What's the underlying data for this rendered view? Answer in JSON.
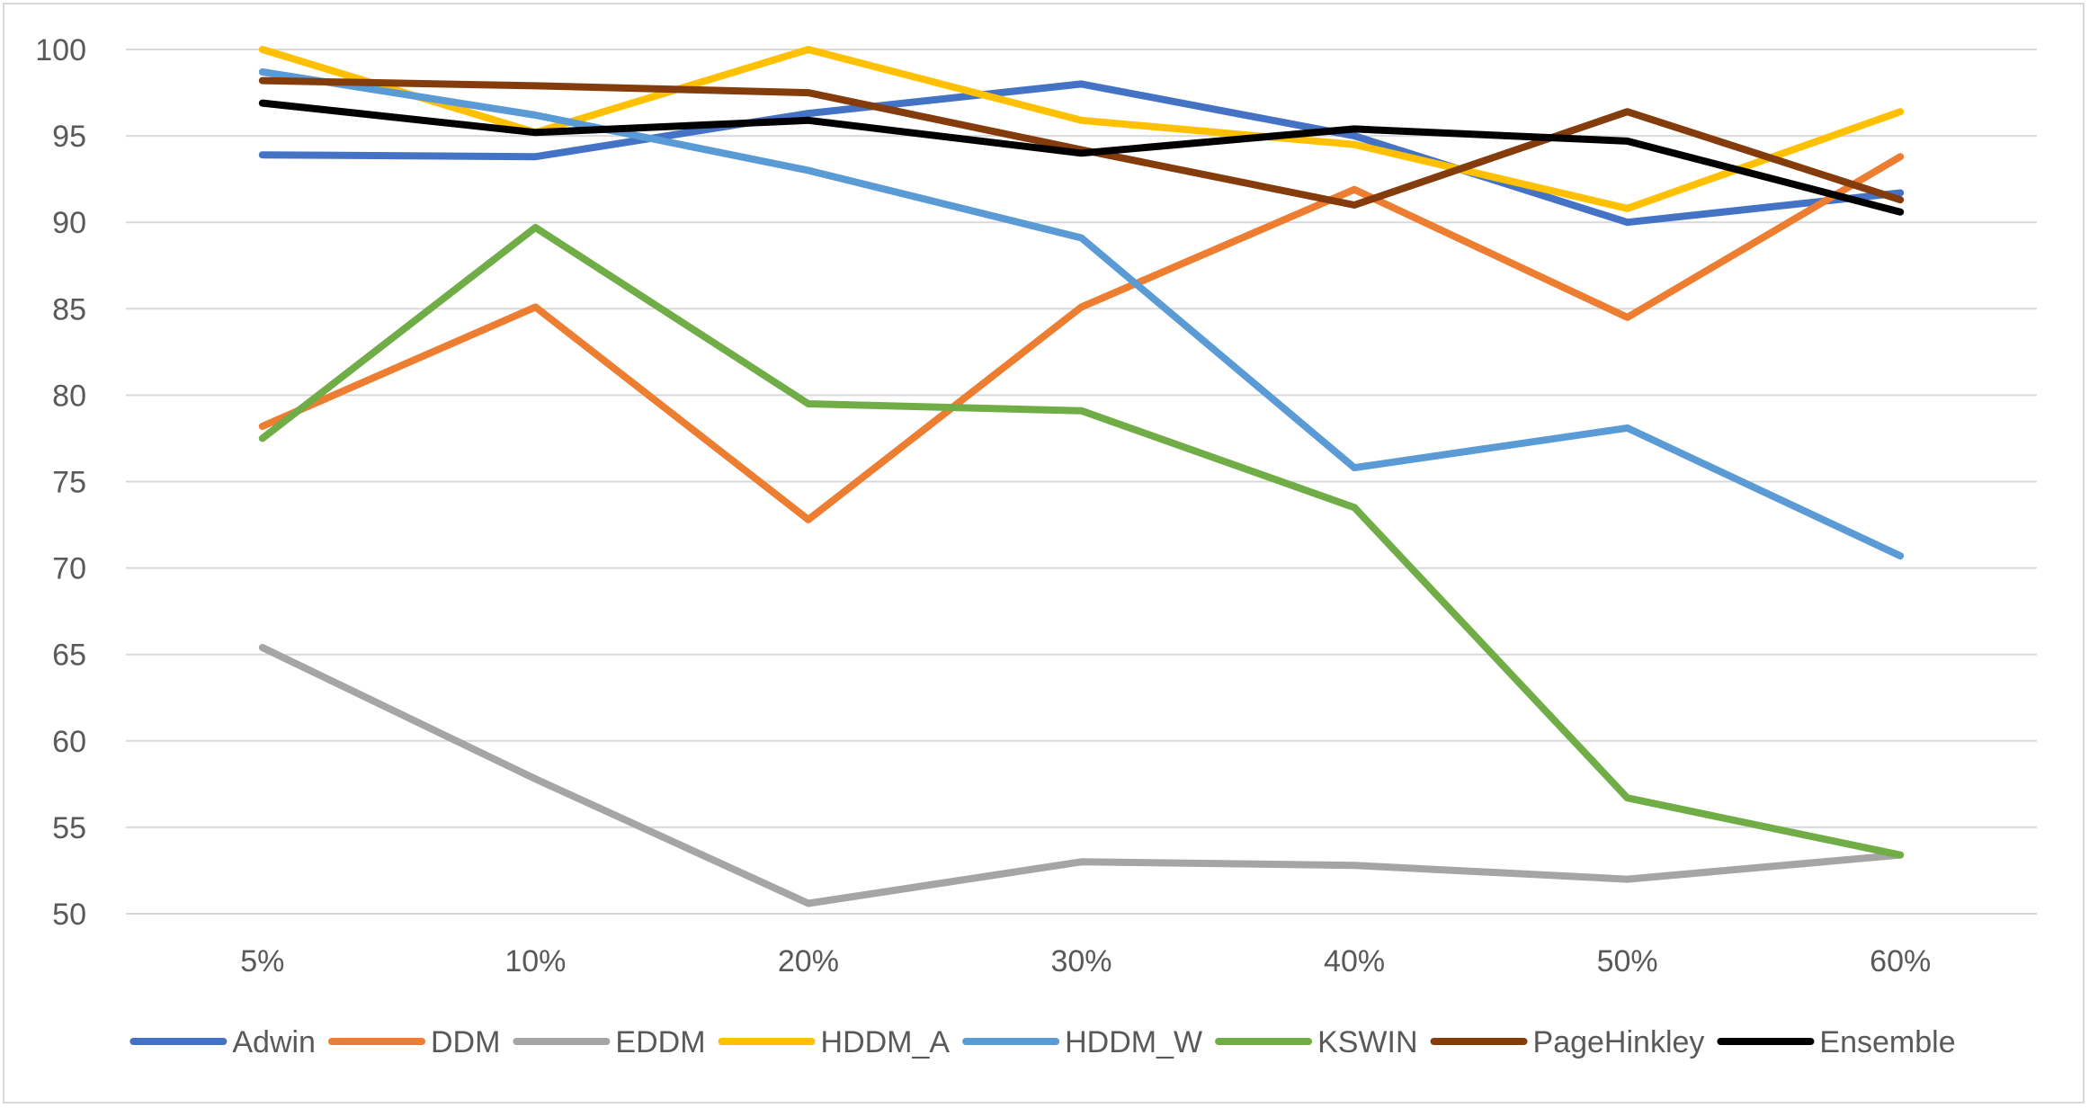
{
  "chart_data": {
    "type": "line",
    "title": "",
    "xlabel": "",
    "ylabel": "",
    "categories": [
      "5%",
      "10%",
      "20%",
      "30%",
      "40%",
      "50%",
      "60%"
    ],
    "ylim": [
      50,
      100
    ],
    "yticks": [
      50,
      55,
      60,
      65,
      70,
      75,
      80,
      85,
      90,
      95,
      100
    ],
    "grid": "horizontal",
    "legend": "bottom",
    "series": [
      {
        "name": "Adwin",
        "color": "#4472C4",
        "values": [
          93.9,
          93.8,
          96.3,
          98.0,
          95.0,
          90.0,
          91.7
        ]
      },
      {
        "name": "DDM",
        "color": "#ED7D31",
        "values": [
          78.2,
          85.1,
          72.8,
          85.1,
          91.9,
          84.5,
          93.8
        ]
      },
      {
        "name": "EDDM",
        "color": "#A5A5A5",
        "values": [
          65.4,
          57.8,
          50.6,
          53.0,
          52.8,
          52.0,
          53.4
        ]
      },
      {
        "name": "HDDM_A",
        "color": "#FFC000",
        "values": [
          100.0,
          95.2,
          100.0,
          95.9,
          94.5,
          90.8,
          96.4
        ]
      },
      {
        "name": "HDDM_W",
        "color": "#5B9BD5",
        "values": [
          98.7,
          96.2,
          93.0,
          89.1,
          75.8,
          78.1,
          70.7
        ]
      },
      {
        "name": "KSWIN",
        "color": "#70AD47",
        "values": [
          77.5,
          89.7,
          79.5,
          79.1,
          73.5,
          56.7,
          53.4
        ]
      },
      {
        "name": "PageHinkley",
        "color": "#843C0C",
        "values": [
          98.2,
          97.9,
          97.5,
          94.2,
          91.0,
          96.4,
          91.3
        ]
      },
      {
        "name": "Ensemble",
        "color": "#000000",
        "values": [
          96.9,
          95.2,
          95.9,
          94.0,
          95.4,
          94.7,
          90.6
        ]
      }
    ]
  }
}
